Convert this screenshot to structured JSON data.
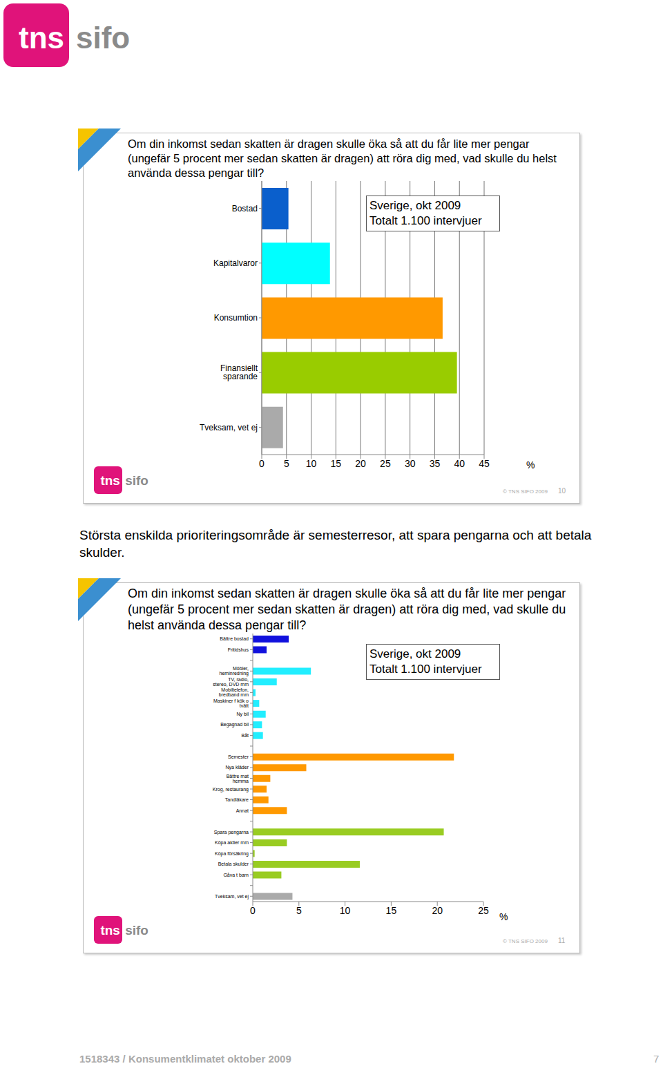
{
  "header": {
    "logo": [
      "tns",
      "sifo"
    ]
  },
  "chart_data": [
    {
      "type": "bar",
      "orientation": "horizontal",
      "title": "Om din inkomst sedan skatten är dragen skulle öka så att du får lite mer pengar (ungefär 5 procent mer sedan skatten är dragen) att röra dig med, vad skulle du helst använda dessa pengar till?",
      "annotation": [
        "Sverige, okt 2009",
        "Totalt 1.100 intervjuer"
      ],
      "categories": [
        "Bostad",
        "Kapitalvaror",
        "Konsumtion",
        "Finansiellt sparande",
        "Tveksam, vet ej"
      ],
      "values": [
        5.4,
        13.8,
        36.6,
        39.5,
        4.3
      ],
      "colors": [
        "#0a5fcc",
        "#00ffff",
        "#ff9900",
        "#99cc00",
        "#aaaaaa"
      ],
      "xlim": [
        0,
        45
      ],
      "xticks": [
        0,
        5,
        10,
        15,
        20,
        25,
        30,
        35,
        40,
        45
      ],
      "x_label": "%",
      "grid": true
    },
    {
      "type": "bar",
      "orientation": "horizontal",
      "title": "Om din inkomst sedan skatten är dragen skulle öka så att du får lite mer pengar (ungefär 5 procent mer sedan skatten är dragen) att röra dig med, vad skulle du helst använda dessa pengar till?",
      "annotation": [
        "Sverige, okt 2009",
        "Totalt 1.100 intervjuer"
      ],
      "categories": [
        "Bättre bostad",
        "Fritidshus",
        null,
        "Möbler, heminredning",
        "TV, radio, stereo, DVD mm",
        "Mobiltelefon, bredband mm",
        "Maskiner f kök o tvätt",
        "Ny bil",
        "Begagnad bil",
        "Båt",
        null,
        "Semester",
        "Nya kläder",
        "Bättre mat hemma",
        "Krog, restaurang",
        "Tandläkare",
        "Annat",
        null,
        "Spara pengarna",
        "Köpa aktier mm",
        "Köpa försäkring",
        "Betala skulder",
        "Gåva t barn",
        null,
        "Tveksam, vet ej"
      ],
      "values": [
        3.9,
        1.5,
        null,
        6.3,
        2.6,
        0.3,
        0.7,
        1.4,
        1.0,
        1.1,
        null,
        21.8,
        5.8,
        1.9,
        1.5,
        1.7,
        3.7,
        null,
        20.7,
        3.7,
        0.2,
        11.6,
        3.1,
        null,
        4.3
      ],
      "colors": [
        "#1111dd",
        "#1111dd",
        null,
        "#22eeff",
        "#22eeff",
        "#22eeff",
        "#22eeff",
        "#22eeff",
        "#22eeff",
        "#22eeff",
        null,
        "#ff9900",
        "#ff9900",
        "#ff9900",
        "#ff9900",
        "#ff9900",
        "#ff9900",
        null,
        "#99cc22",
        "#99cc22",
        "#99cc22",
        "#99cc22",
        "#99cc22",
        null,
        "#aaaaaa"
      ],
      "xlim": [
        0,
        25
      ],
      "xticks": [
        0,
        5,
        10,
        15,
        20,
        25
      ],
      "x_label": "%",
      "grid": false
    }
  ],
  "slides": [
    {
      "copyright": "© TNS SIFO 2009",
      "number": 10
    },
    {
      "copyright": "© TNS SIFO 2009",
      "number": 11
    }
  ],
  "caption": "Största enskilda prioriteringsområde är semesterresor, att spara pengarna och att betala skulder.",
  "footer": {
    "text": "1518343 / Konsumentklimatet oktober 2009",
    "page": 7
  }
}
